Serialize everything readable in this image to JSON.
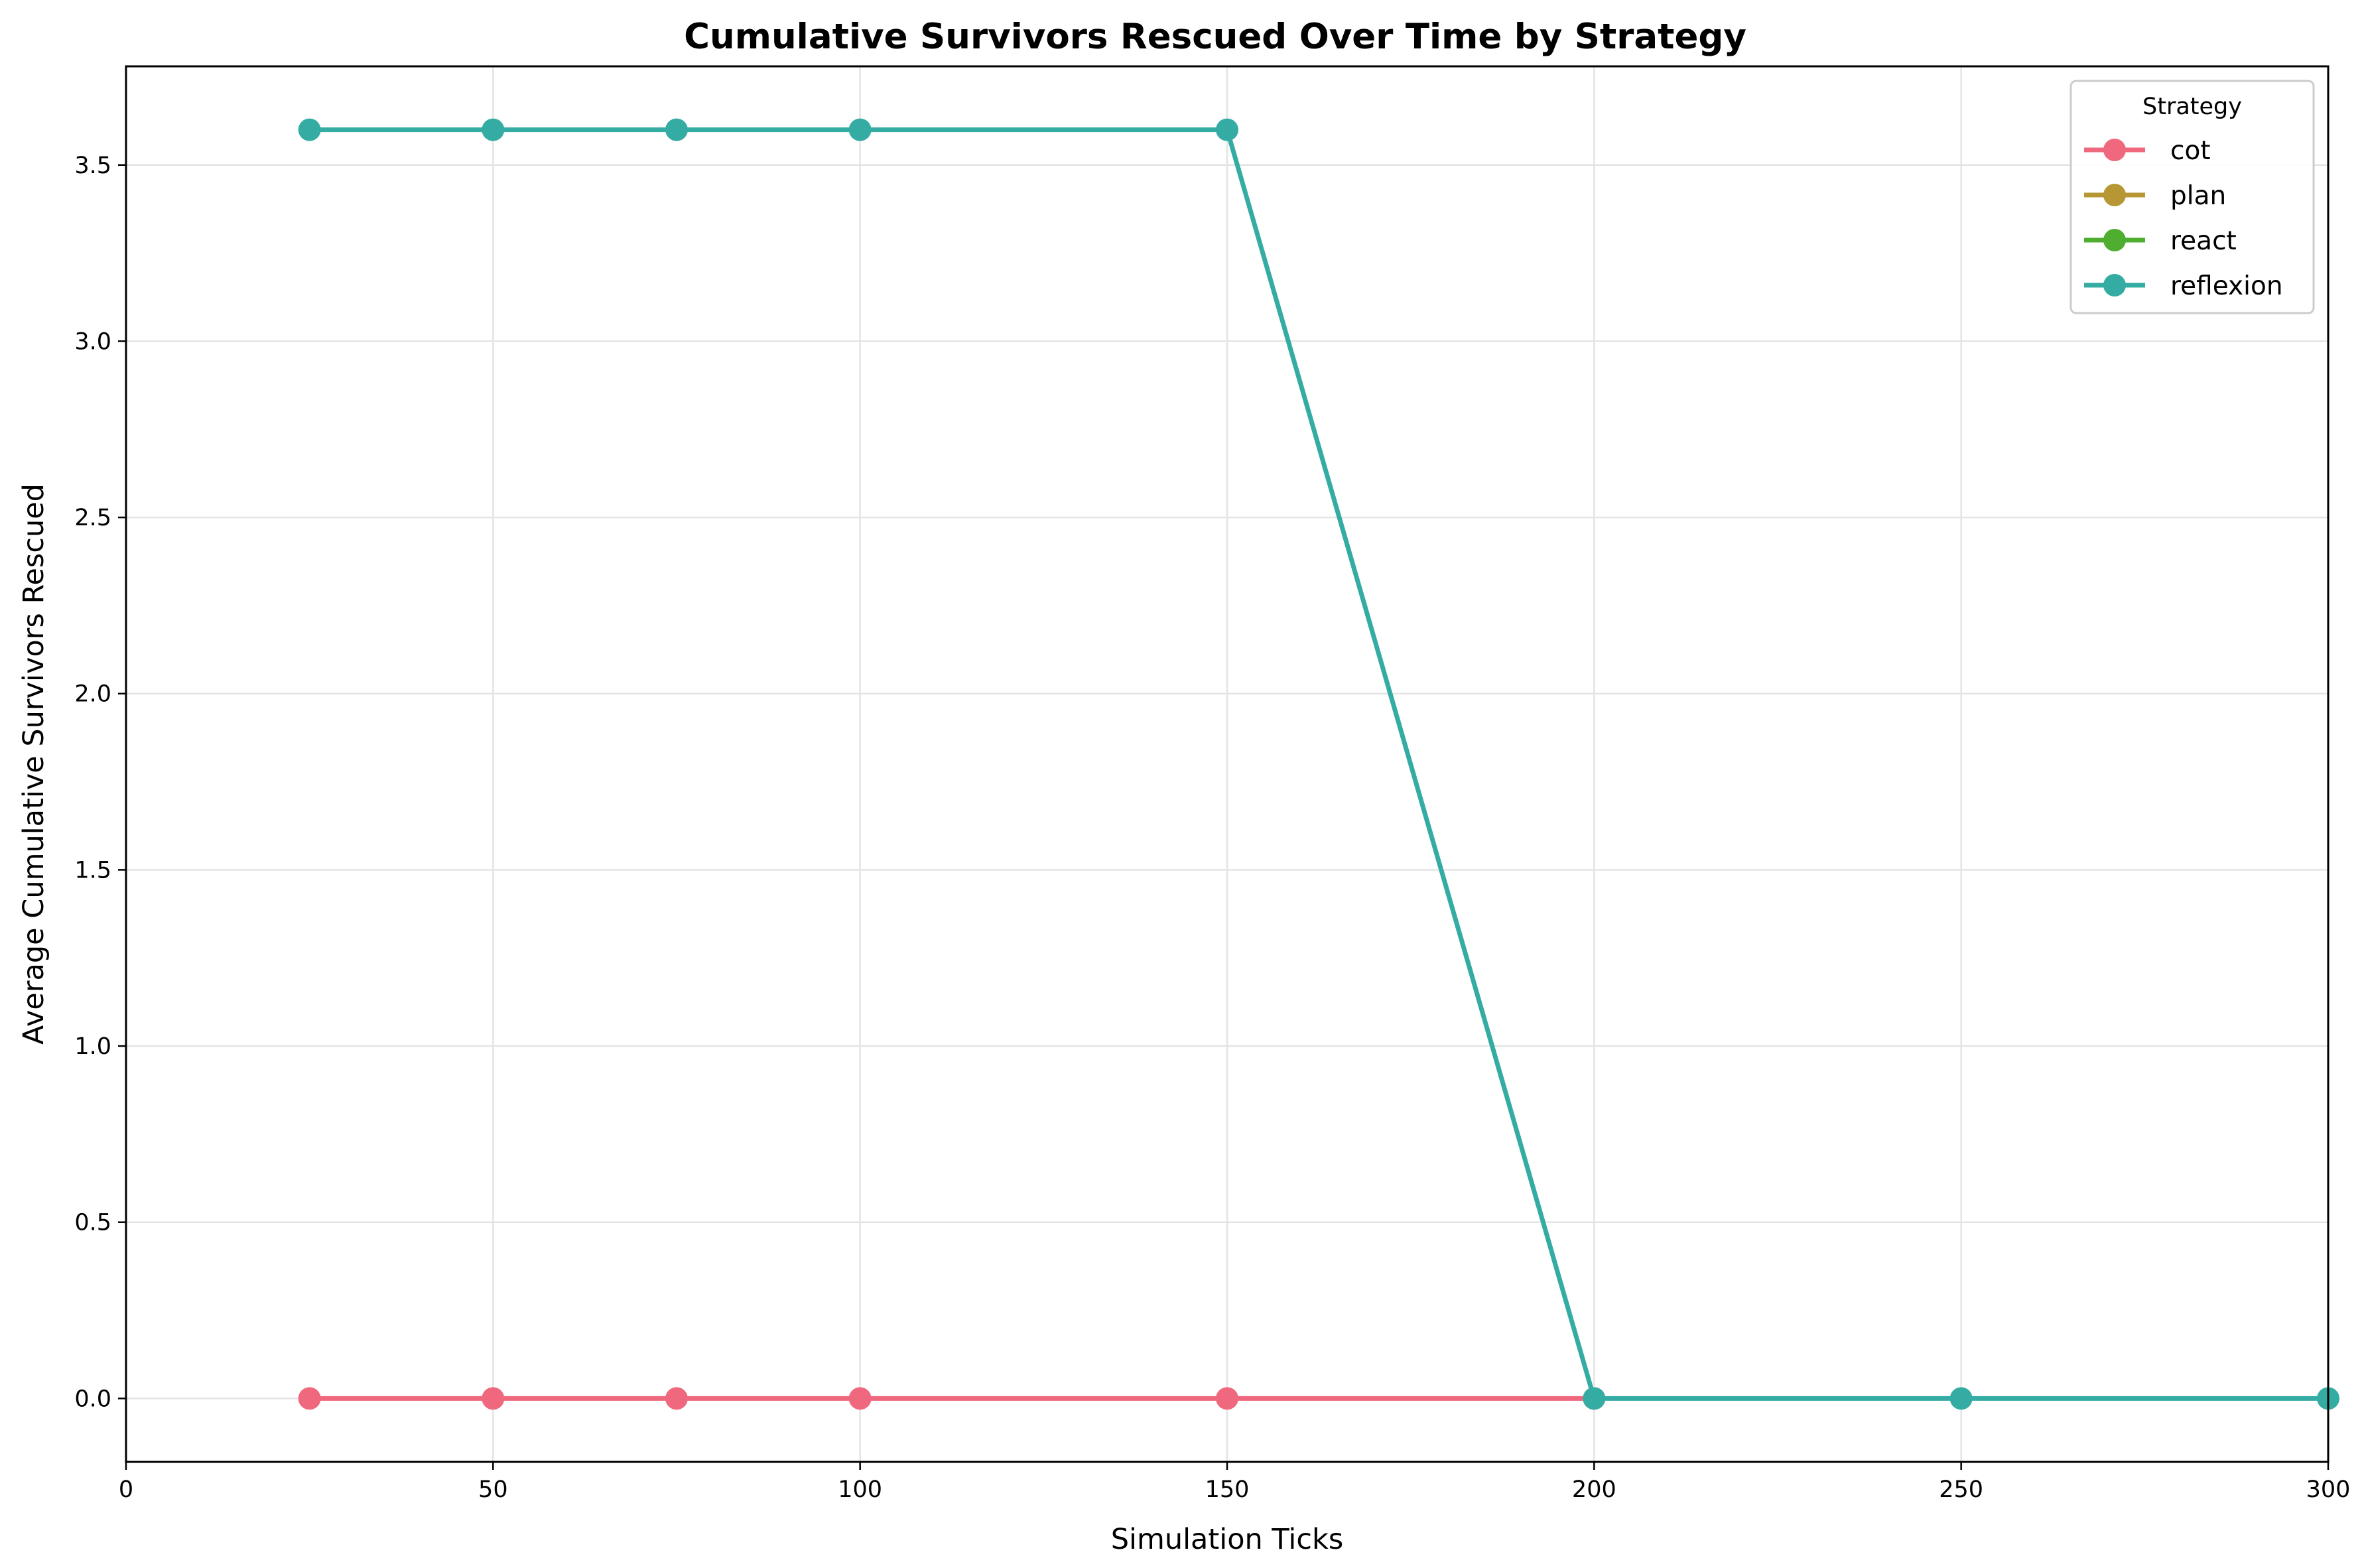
{
  "chart_data": {
    "type": "line",
    "title": "Cumulative Survivors Rescued Over Time by Strategy",
    "xlabel": "Simulation Ticks",
    "ylabel": "Average Cumulative Survivors Rescued",
    "xlim": [
      0,
      300
    ],
    "ylim": [
      -0.18,
      3.78
    ],
    "xticks": [
      0,
      50,
      100,
      150,
      200,
      250,
      300
    ],
    "xtick_labels": [
      "0",
      "50",
      "100",
      "150",
      "200",
      "250",
      "300"
    ],
    "yticks": [
      0.0,
      0.5,
      1.0,
      1.5,
      2.0,
      2.5,
      3.0,
      3.5
    ],
    "ytick_labels": [
      "0.0",
      "0.5",
      "1.0",
      "1.5",
      "2.0",
      "2.5",
      "3.0",
      "3.5"
    ],
    "grid": true,
    "legend": {
      "title": "Strategy",
      "placement": "top-right"
    },
    "series": [
      {
        "name": "cot",
        "color": "#f0687e",
        "x": [
          25,
          50,
          75,
          100,
          150,
          200
        ],
        "values": [
          0,
          0,
          0,
          0,
          0,
          0
        ]
      },
      {
        "name": "plan",
        "color": "#b69733",
        "x": [],
        "values": []
      },
      {
        "name": "react",
        "color": "#4fae30",
        "x": [],
        "values": []
      },
      {
        "name": "reflexion",
        "color": "#35aca3",
        "x": [
          25,
          50,
          75,
          100,
          150,
          200,
          250,
          300
        ],
        "values": [
          3.6,
          3.6,
          3.6,
          3.6,
          3.6,
          0,
          0,
          0
        ]
      }
    ]
  }
}
